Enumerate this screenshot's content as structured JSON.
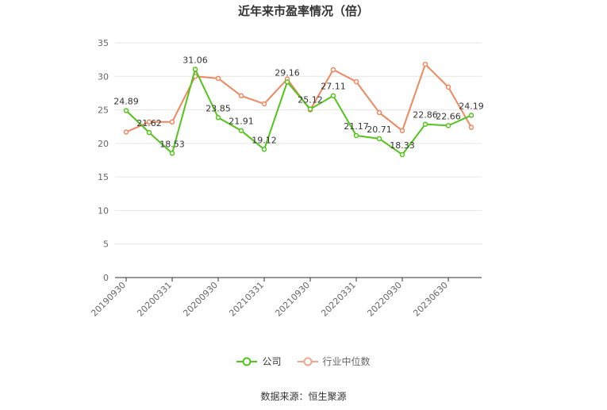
{
  "chart_data": {
    "type": "line",
    "title": "近年来市盈率情况（倍）",
    "source": "数据来源：恒生聚源",
    "ylim": [
      0,
      35
    ],
    "yticks": [
      0,
      5,
      10,
      15,
      20,
      25,
      30,
      35
    ],
    "grid": true,
    "legend_position": "bottom",
    "x_tick_labels": [
      "20190930",
      "20200331",
      "20200930",
      "20210331",
      "20210930",
      "20220331",
      "20220930",
      "20230630"
    ],
    "x_tick_index": [
      0,
      2,
      4,
      6,
      8,
      10,
      12,
      14
    ],
    "series": [
      {
        "name": "公司",
        "color": "#52c41a",
        "values": [
          24.89,
          21.62,
          18.53,
          31.06,
          23.85,
          21.91,
          19.12,
          29.16,
          25.12,
          27.11,
          21.17,
          20.71,
          18.33,
          22.86,
          22.66,
          24.19
        ],
        "labels": [
          "24.89",
          "21.62",
          "18.53",
          "31.06",
          "23.85",
          "21.91",
          "19.12",
          "29.16",
          "25.12",
          "27.11",
          "21.17",
          "20.71",
          "18.33",
          "22.86",
          "22.66",
          "24.19"
        ]
      },
      {
        "name": "行业中位数",
        "color": "#f0875e",
        "values": [
          21.7,
          23.2,
          23.2,
          30.0,
          29.7,
          27.1,
          25.9,
          29.6,
          25.0,
          31.0,
          29.2,
          24.6,
          21.9,
          31.8,
          28.4,
          22.4
        ]
      }
    ]
  }
}
